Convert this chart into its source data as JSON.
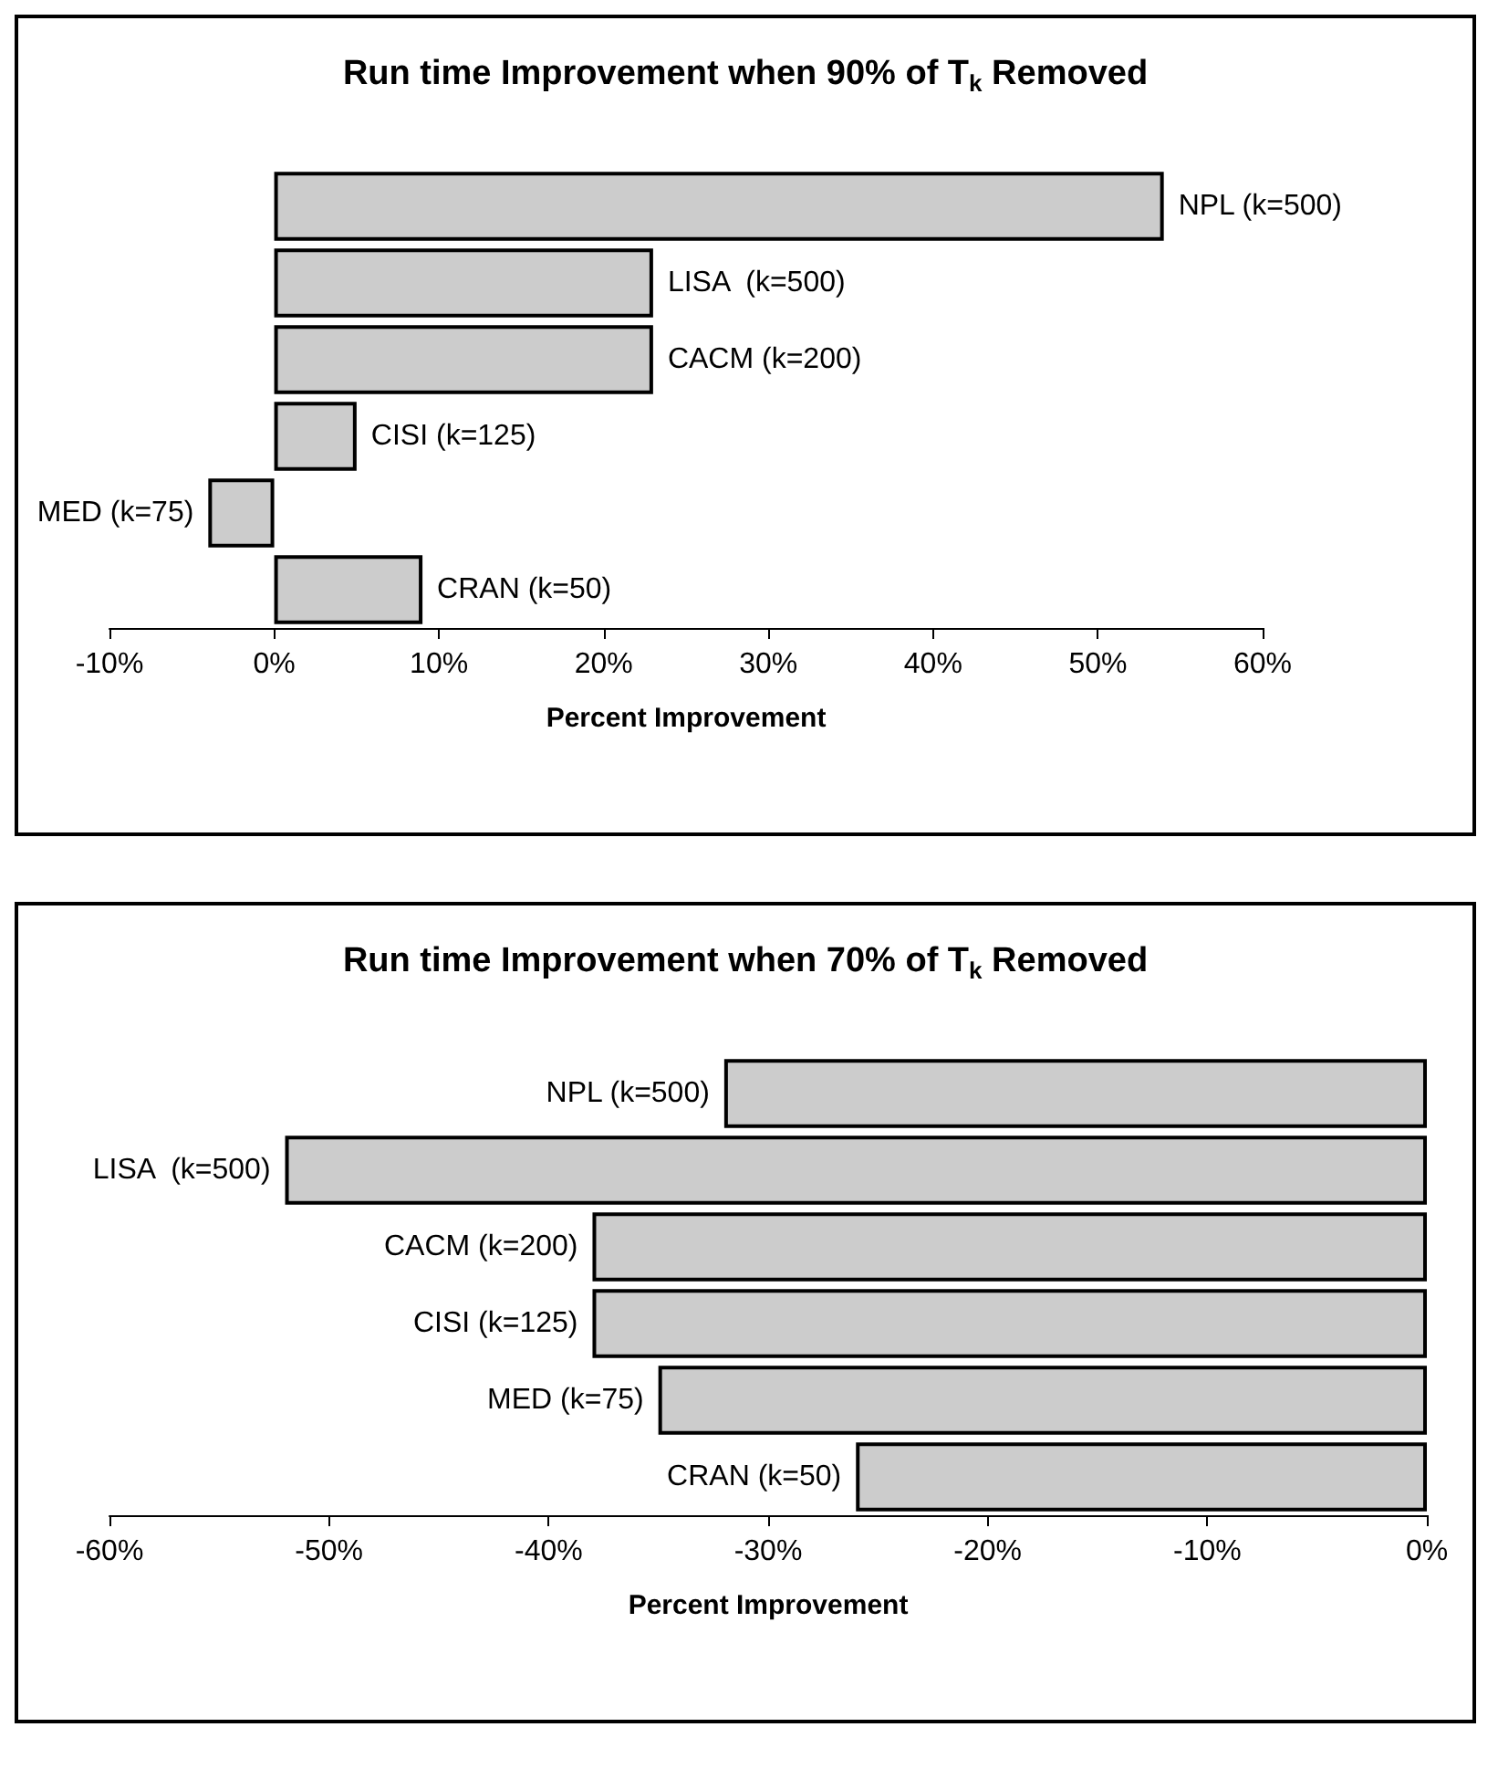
{
  "chart_data": [
    {
      "type": "bar",
      "orientation": "horizontal",
      "title": "Run time Improvement when 90% of T$_{k}$ Removed",
      "xlabel": "Percent Improvement",
      "categories": [
        "NPL (k=500)",
        "LISA  (k=500)",
        "CACM (k=200)",
        "CISI (k=125)",
        "MED (k=75)",
        "CRAN (k=50)"
      ],
      "values": [
        54,
        23,
        23,
        5,
        -4,
        9
      ],
      "color": "#cccccc",
      "xlim": [
        -10,
        60
      ],
      "xticks": [
        {
          "value": -10,
          "label": "-10%"
        },
        {
          "value": 0,
          "label": "0%"
        },
        {
          "value": 10,
          "label": "10%"
        },
        {
          "value": 20,
          "label": "20%"
        },
        {
          "value": 30,
          "label": "30%"
        },
        {
          "value": 40,
          "label": "40%"
        },
        {
          "value": 50,
          "label": "50%"
        },
        {
          "value": 60,
          "label": "60%"
        }
      ],
      "tick_labels": "x"
    },
    {
      "type": "bar",
      "orientation": "horizontal",
      "title": "Run time Improvement when 70% of T$_{k}$ Removed",
      "xlabel": "Percent Improvement",
      "categories": [
        "NPL (k=500)",
        "LISA  (k=500)",
        "CACM (k=200)",
        "CISI (k=125)",
        "MED (k=75)",
        "CRAN (k=50)"
      ],
      "values": [
        -32,
        -52,
        -38,
        -38,
        -35,
        -26
      ],
      "color": "#cccccc",
      "xlim": [
        -60,
        0
      ],
      "xticks": [
        {
          "value": -60,
          "label": "-60%"
        },
        {
          "value": -50,
          "label": "-50%"
        },
        {
          "value": -40,
          "label": "-40%"
        },
        {
          "value": -30,
          "label": "-30%"
        },
        {
          "value": -20,
          "label": "-20%"
        },
        {
          "value": -10,
          "label": "-10%"
        },
        {
          "value": 0,
          "label": "0%"
        }
      ],
      "tick_labels": "x"
    }
  ]
}
